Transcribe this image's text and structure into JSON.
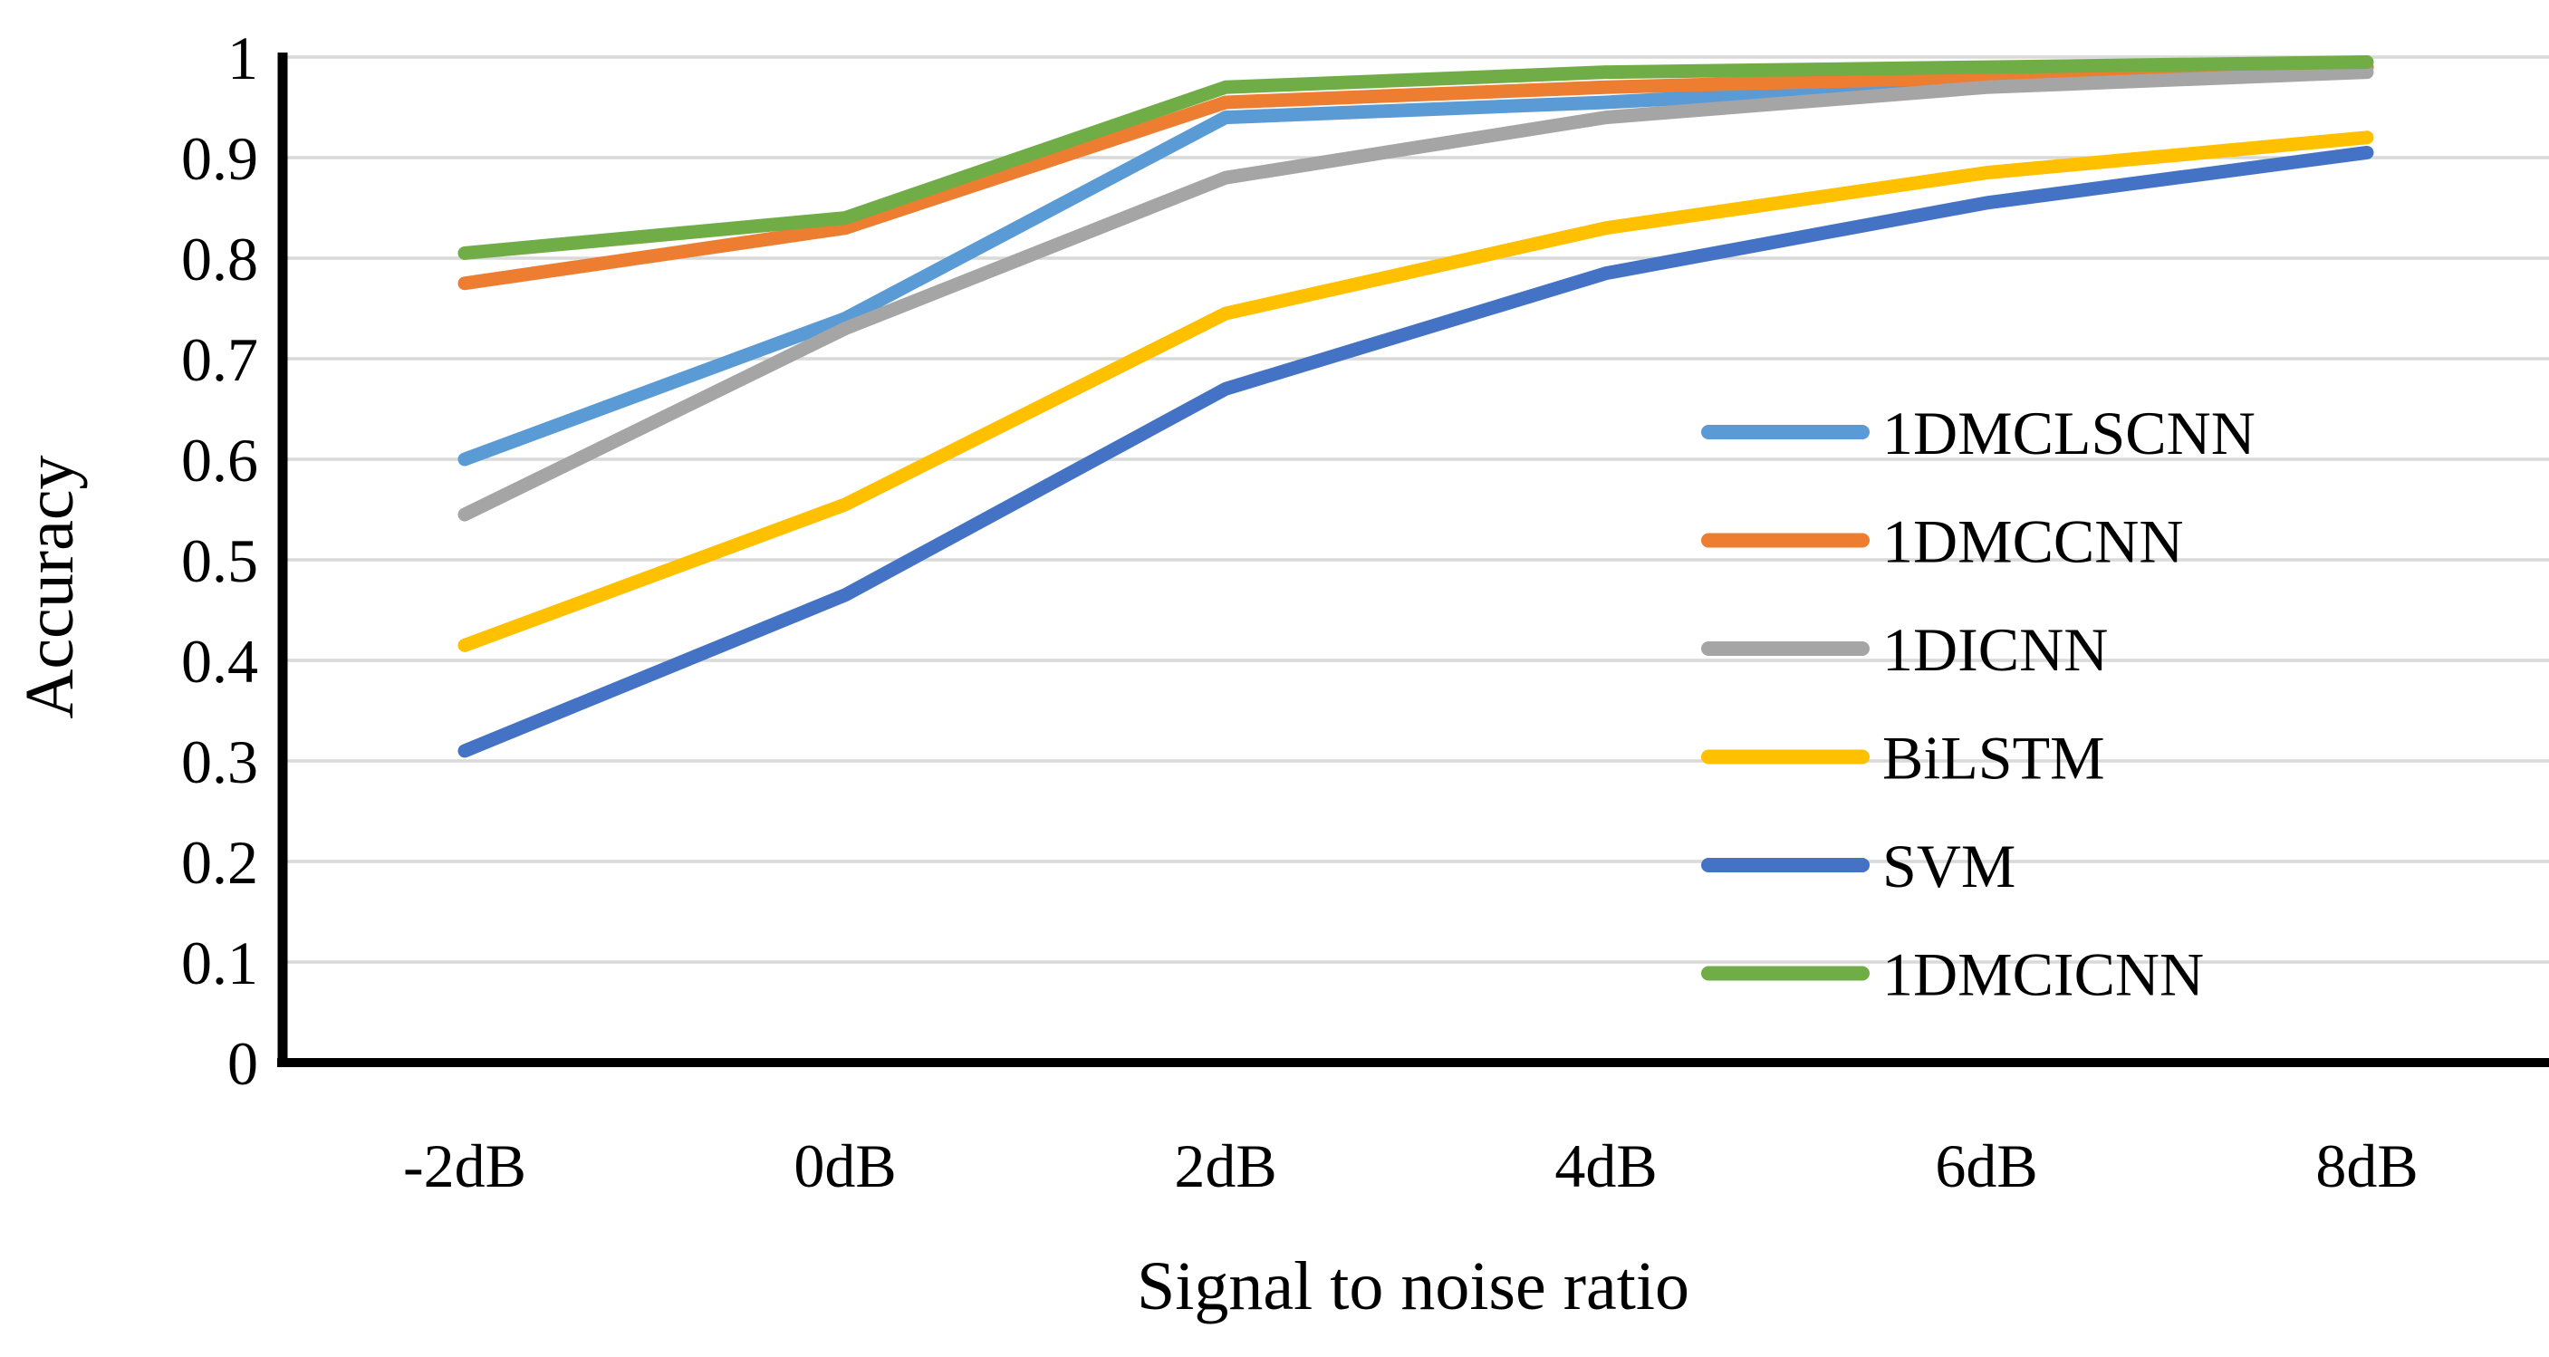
{
  "chart_data": {
    "type": "line",
    "title": "",
    "xlabel": "Signal to noise ratio",
    "ylabel": "Accuracy",
    "categories": [
      "-2dB",
      "0dB",
      "2dB",
      "4dB",
      "6dB",
      "8dB"
    ],
    "y_tick_labels": [
      "0",
      "0.1",
      "0.2",
      "0.3",
      "0.4",
      "0.5",
      "0.6",
      "0.7",
      "0.8",
      "0.9",
      "1"
    ],
    "y_tick_values": [
      0,
      0.1,
      0.2,
      0.3,
      0.4,
      0.5,
      0.6,
      0.7,
      0.8,
      0.9,
      1
    ],
    "ylim": [
      0,
      1
    ],
    "grid": "horizontal",
    "legend_position": "center-right",
    "axis_color": "#000000",
    "gridline_color": "#d9d9d9",
    "series": [
      {
        "name": "1DMCLSCNN",
        "color": "#5b9bd5",
        "values": [
          0.6,
          0.74,
          0.94,
          0.955,
          0.975,
          0.99
        ]
      },
      {
        "name": "1DMCCNN",
        "color": "#ed7d31",
        "values": [
          0.775,
          0.83,
          0.955,
          0.97,
          0.98,
          0.99
        ]
      },
      {
        "name": "1DICNN",
        "color": "#a5a5a5",
        "values": [
          0.545,
          0.73,
          0.88,
          0.94,
          0.97,
          0.985
        ]
      },
      {
        "name": "BiLSTM",
        "color": "#ffc000",
        "values": [
          0.415,
          0.555,
          0.745,
          0.83,
          0.885,
          0.92
        ]
      },
      {
        "name": "SVM",
        "color": "#4472c4",
        "values": [
          0.31,
          0.465,
          0.67,
          0.785,
          0.855,
          0.905
        ]
      },
      {
        "name": "1DMCICNN",
        "color": "#70ad47",
        "values": [
          0.805,
          0.84,
          0.97,
          0.985,
          0.99,
          0.995
        ]
      }
    ]
  }
}
